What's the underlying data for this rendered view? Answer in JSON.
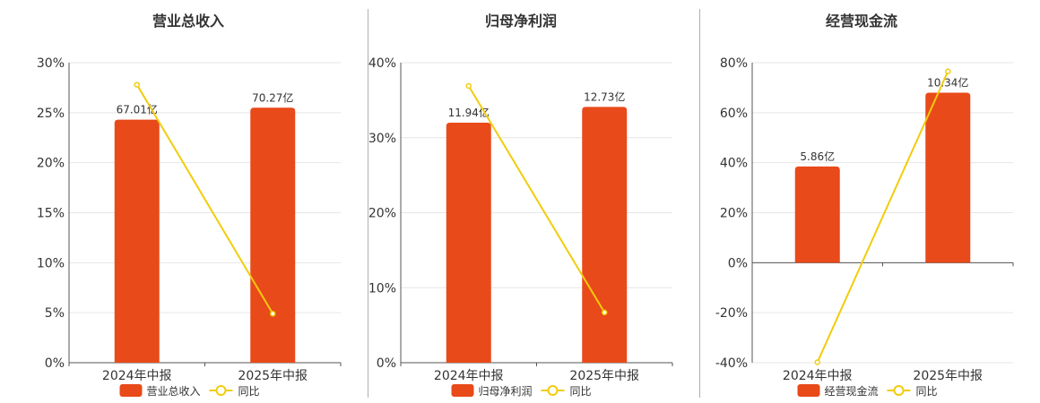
{
  "chart_data": [
    {
      "type": "bar",
      "title": "营业总收入",
      "categories": [
        "2024年中报",
        "2025年中报"
      ],
      "series": [
        {
          "name": "营业总收入",
          "type": "bar",
          "values": [
            24.3,
            25.5
          ],
          "labels": [
            "67.01亿",
            "70.27亿"
          ],
          "color": "#e84a1a"
        },
        {
          "name": "同比",
          "type": "line",
          "values": [
            27.8,
            4.9
          ],
          "color": "#f2cc0c"
        }
      ],
      "yticks": [
        "0%",
        "5%",
        "10%",
        "15%",
        "20%",
        "25%",
        "30%"
      ],
      "ylim": [
        0,
        30
      ],
      "grid": true,
      "legend": "bottom"
    },
    {
      "type": "bar",
      "title": "归母净利润",
      "categories": [
        "2024年中报",
        "2025年中报"
      ],
      "series": [
        {
          "name": "归母净利润",
          "type": "bar",
          "values": [
            32.0,
            34.1
          ],
          "labels": [
            "11.94亿",
            "12.73亿"
          ],
          "color": "#e84a1a"
        },
        {
          "name": "同比",
          "type": "line",
          "values": [
            36.9,
            6.7
          ],
          "color": "#f2cc0c"
        }
      ],
      "yticks": [
        "0%",
        "10%",
        "20%",
        "30%",
        "40%"
      ],
      "ylim": [
        0,
        40
      ],
      "grid": true,
      "legend": "bottom"
    },
    {
      "type": "bar",
      "title": "经营现金流",
      "categories": [
        "2024年中报",
        "2025年中报"
      ],
      "series": [
        {
          "name": "经营现金流",
          "type": "bar",
          "values": [
            38.5,
            68.0
          ],
          "labels": [
            "5.86亿",
            "10.34亿"
          ],
          "color": "#e84a1a"
        },
        {
          "name": "同比",
          "type": "line",
          "values": [
            -39.8,
            76.5
          ],
          "color": "#f2cc0c"
        }
      ],
      "yticks": [
        "-40%",
        "-20%",
        "0%",
        "20%",
        "40%",
        "60%",
        "80%"
      ],
      "ylim": [
        -40,
        80
      ],
      "grid": true,
      "legend": "bottom"
    }
  ]
}
